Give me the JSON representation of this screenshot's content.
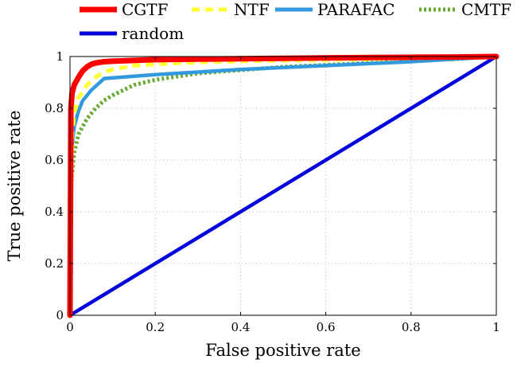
{
  "chart_data": {
    "type": "line",
    "xlabel": "False positive rate",
    "ylabel": "True positive rate",
    "xlim": [
      0,
      1
    ],
    "ylim": [
      0,
      1
    ],
    "xticks": [
      0,
      0.2,
      0.4,
      0.6,
      0.8,
      1
    ],
    "yticks": [
      0,
      0.2,
      0.4,
      0.6,
      0.8,
      1
    ],
    "xtick_labels": [
      "0",
      "0.2",
      "0.4",
      "0.6",
      "0.8",
      "1"
    ],
    "ytick_labels": [
      "0",
      "0.2",
      "0.4",
      "0.6",
      "0.8",
      "1"
    ],
    "grid": true,
    "legend_position": "top",
    "series": [
      {
        "name": "CGTF",
        "color": "#ff0000",
        "style": "solid",
        "x": [
          0,
          0.002,
          0.005,
          0.01,
          0.02,
          0.03,
          0.04,
          0.05,
          0.06,
          0.08,
          0.1,
          0.15,
          0.2,
          0.3,
          0.5,
          0.7,
          0.9,
          1.0
        ],
        "y": [
          0,
          0.8,
          0.86,
          0.89,
          0.92,
          0.945,
          0.96,
          0.97,
          0.975,
          0.98,
          0.982,
          0.985,
          0.988,
          0.99,
          0.993,
          0.996,
          0.998,
          1.0
        ]
      },
      {
        "name": "NTF",
        "color": "#ffff33",
        "style": "dashed",
        "x": [
          0,
          0.005,
          0.01,
          0.02,
          0.04,
          0.06,
          0.08,
          0.1,
          0.15,
          0.2,
          0.3,
          0.5,
          0.7,
          0.9,
          1.0
        ],
        "y": [
          0,
          0.7,
          0.78,
          0.84,
          0.89,
          0.92,
          0.94,
          0.95,
          0.965,
          0.97,
          0.978,
          0.985,
          0.99,
          0.997,
          1.0
        ]
      },
      {
        "name": "PARAFAC",
        "color": "#3399dd",
        "style": "solid",
        "x": [
          0,
          0.002,
          0.005,
          0.01,
          0.02,
          0.03,
          0.05,
          0.08,
          0.2,
          0.4,
          0.6,
          0.8,
          1.0
        ],
        "y": [
          0,
          0.6,
          0.66,
          0.73,
          0.79,
          0.83,
          0.87,
          0.915,
          0.93,
          0.95,
          0.965,
          0.98,
          1.0
        ]
      },
      {
        "name": "CMTF",
        "color": "#66aa33",
        "style": "dotted",
        "x": [
          0,
          0.002,
          0.005,
          0.01,
          0.02,
          0.04,
          0.06,
          0.08,
          0.1,
          0.15,
          0.2,
          0.3,
          0.5,
          0.7,
          0.9,
          1.0
        ],
        "y": [
          0,
          0.45,
          0.55,
          0.63,
          0.7,
          0.76,
          0.8,
          0.83,
          0.85,
          0.89,
          0.91,
          0.935,
          0.96,
          0.975,
          0.99,
          1.0
        ]
      },
      {
        "name": "random",
        "color": "#0000dd",
        "style": "solid",
        "x": [
          0,
          1
        ],
        "y": [
          0,
          1
        ]
      }
    ]
  }
}
